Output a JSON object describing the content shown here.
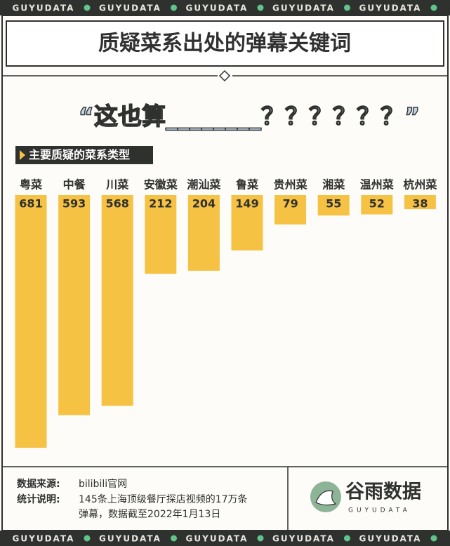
{
  "brand_strip": "GUYUDATA",
  "chart_data": {
    "type": "bar",
    "title": "质疑菜系出处的弹幕关键词",
    "subtitle": "“这也算________？？？？？？”",
    "section_label": "主要质疑的菜系类型",
    "categories": [
      "粤菜",
      "中餐",
      "川菜",
      "安徽菜",
      "潮汕菜",
      "鲁菜",
      "贵州菜",
      "湘菜",
      "温州菜",
      "杭州菜"
    ],
    "values": [
      681,
      593,
      568,
      212,
      204,
      149,
      79,
      55,
      52,
      38
    ],
    "color": "#f6c244"
  },
  "footer": {
    "source_label": "数据来源:",
    "source": "bilibili官网",
    "note_label": "统计说明:",
    "note": [
      "145条上海顶级餐厅探店视频的17万条",
      "弹幕，数据截至2022年1月13日"
    ],
    "logo_name": "谷雨数据",
    "logo_sub": "GUYUDATA"
  }
}
